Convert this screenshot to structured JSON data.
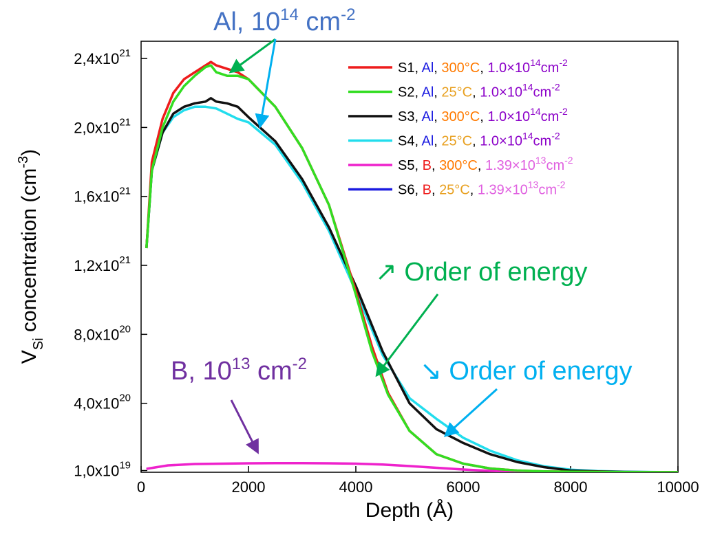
{
  "chart_data": {
    "type": "line",
    "xlabel": "Depth (Å)",
    "ylabel": {
      "main": "V",
      "sub": "Si",
      "rest": " concentration (cm",
      "exp": "-3",
      "end": ")"
    },
    "xlim": [
      0,
      10000
    ],
    "ylim": [
      0,
      2.5e+21
    ],
    "x_ticks": [
      {
        "value": 0,
        "label": "0"
      },
      {
        "value": 2000,
        "label": "2000"
      },
      {
        "value": 4000,
        "label": "4000"
      },
      {
        "value": 6000,
        "label": "6000"
      },
      {
        "value": 8000,
        "label": "8000"
      },
      {
        "value": 10000,
        "label": "10000"
      }
    ],
    "y_ticks": [
      {
        "value": 1e+19,
        "mant": "1,0x10",
        "exp": "19"
      },
      {
        "value": 4e+20,
        "mant": "4,0x10",
        "exp": "20"
      },
      {
        "value": 8e+20,
        "mant": "8,0x10",
        "exp": "20"
      },
      {
        "value": 1.2e+21,
        "mant": "1,2x10",
        "exp": "21"
      },
      {
        "value": 1.6e+21,
        "mant": "1,6x10",
        "exp": "21"
      },
      {
        "value": 2e+21,
        "mant": "2,0x10",
        "exp": "21"
      },
      {
        "value": 2.4e+21,
        "mant": "2,4x10",
        "exp": "21"
      }
    ],
    "legend_position": "top-right",
    "series": [
      {
        "id": "S1",
        "color": "#ee1c1c",
        "width": 3.5,
        "x": [
          100,
          200,
          400,
          600,
          800,
          1000,
          1200,
          1300,
          1400,
          1600,
          1800,
          2000,
          2500,
          3000,
          3500,
          4000,
          4300,
          4600,
          5000,
          5500,
          6000,
          6500,
          7000,
          7500,
          8000,
          9000,
          10000
        ],
        "y": [
          1.3e+21,
          1.8e+21,
          2.05e+21,
          2.2e+21,
          2.28e+21,
          2.32e+21,
          2.36e+21,
          2.38e+21,
          2.36e+21,
          2.34e+21,
          2.32e+21,
          2.28e+21,
          2.12e+21,
          1.88e+21,
          1.55e+21,
          1.05e+21,
          7.3e+20,
          4.6e+20,
          2.4e+20,
          1.05e+20,
          5e+19,
          2.2e+19,
          1e+19,
          5e+18,
          3e+18,
          1e+18,
          0
        ]
      },
      {
        "id": "S2",
        "color": "#33dd22",
        "width": 3.5,
        "x": [
          100,
          200,
          400,
          600,
          800,
          1000,
          1200,
          1300,
          1400,
          1600,
          1800,
          2000,
          2500,
          3000,
          3500,
          4000,
          4300,
          4600,
          5000,
          5500,
          6000,
          6500,
          7000,
          7500,
          8000,
          9000,
          10000
        ],
        "y": [
          1.3e+21,
          1.75e+21,
          2e+21,
          2.15e+21,
          2.24e+21,
          2.3e+21,
          2.35e+21,
          2.36e+21,
          2.32e+21,
          2.3e+21,
          2.3e+21,
          2.28e+21,
          2.12e+21,
          1.88e+21,
          1.55e+21,
          1.03e+21,
          7e+20,
          4.5e+20,
          2.4e+20,
          1.05e+20,
          5e+19,
          2.2e+19,
          1e+19,
          5e+18,
          3e+18,
          1e+18,
          0
        ]
      },
      {
        "id": "S3",
        "color": "#111111",
        "width": 3.5,
        "x": [
          100,
          200,
          400,
          600,
          800,
          1000,
          1200,
          1300,
          1400,
          1600,
          1800,
          2000,
          2500,
          3000,
          3500,
          4000,
          4500,
          5000,
          5500,
          6000,
          6500,
          7000,
          7500,
          8000,
          8500,
          9000,
          10000
        ],
        "y": [
          1.3e+21,
          1.75e+21,
          1.97e+21,
          2.08e+21,
          2.12e+21,
          2.14e+21,
          2.15e+21,
          2.17e+21,
          2.15e+21,
          2.14e+21,
          2.12e+21,
          2.06e+21,
          1.92e+21,
          1.7e+21,
          1.42e+21,
          1.08e+21,
          7e+20,
          4e+20,
          2.5e+20,
          1.7e+20,
          1.05e+20,
          6e+19,
          3e+19,
          1e+19,
          5e+18,
          2e+18,
          0
        ]
      },
      {
        "id": "S4",
        "color": "#22dded",
        "width": 3.5,
        "x": [
          100,
          200,
          400,
          600,
          800,
          1000,
          1200,
          1400,
          1600,
          1800,
          2000,
          2500,
          3000,
          3500,
          4000,
          4500,
          5000,
          5500,
          6000,
          6500,
          7000,
          7500,
          8000,
          8500,
          9000,
          10000
        ],
        "y": [
          1.3e+21,
          1.75e+21,
          1.97e+21,
          2.06e+21,
          2.1e+21,
          2.12e+21,
          2.12e+21,
          2.11e+21,
          2.08e+21,
          2.05e+21,
          2.03e+21,
          1.9e+21,
          1.68e+21,
          1.4e+21,
          1.05e+21,
          6.8e+20,
          4.3e+20,
          3.1e+20,
          2e+20,
          1.25e+20,
          7e+19,
          3.5e+19,
          1.5e+19,
          7e+18,
          3e+18,
          0
        ]
      },
      {
        "id": "S5",
        "color": "#ee22cc",
        "width": 3.5,
        "x": [
          100,
          300,
          500,
          1000,
          1500,
          2000,
          2500,
          3000,
          3500,
          4000,
          4500,
          5000,
          5500,
          6000,
          6500,
          7000,
          8000,
          9000,
          10000
        ],
        "y": [
          2e+19,
          3e+19,
          4e+19,
          4.8e+19,
          5e+19,
          5.2e+19,
          5.3e+19,
          5.3e+19,
          5.2e+19,
          5e+19,
          4.5e+19,
          3.6e+19,
          2.6e+19,
          1.6e+19,
          8e+18,
          4e+18,
          1e+18,
          0,
          0
        ]
      },
      {
        "id": "S6",
        "color": "#1a1ae0",
        "width": 2.5,
        "x": [
          100,
          300,
          500,
          1000,
          1500,
          2000,
          2500,
          3000,
          3500,
          4000,
          4500,
          5000,
          5500,
          6000,
          6500,
          7000,
          8000,
          9000,
          10000
        ],
        "y": [
          2e+19,
          3e+19,
          4e+19,
          4.8e+19,
          5e+19,
          5.2e+19,
          5.3e+19,
          5.3e+19,
          5.2e+19,
          5e+19,
          4.5e+19,
          3.6e+19,
          2.6e+19,
          1.6e+19,
          8e+18,
          4e+18,
          1e+18,
          0,
          0
        ]
      }
    ],
    "legend": [
      {
        "line_color": "#ee1c1c",
        "sample": "S1",
        "element": "Al",
        "element_color": "#1a1ae0",
        "temp": "300°C",
        "temp_color": "#ff7a00",
        "dose_mant": "1.0×10",
        "dose_exp": "14",
        "dose_unit": "cm",
        "unit_exp": "-2",
        "dose_color": "#8b00c8"
      },
      {
        "line_color": "#33dd22",
        "sample": "S2",
        "element": "Al",
        "element_color": "#1a1ae0",
        "temp": "25°C",
        "temp_color": "#e8a020",
        "dose_mant": "1.0×10",
        "dose_exp": "14",
        "dose_unit": "cm",
        "unit_exp": "-2",
        "dose_color": "#8b00c8"
      },
      {
        "line_color": "#111111",
        "sample": "S3",
        "element": "Al",
        "element_color": "#1a1ae0",
        "temp": "300°C",
        "temp_color": "#ff7a00",
        "dose_mant": "1.0×10",
        "dose_exp": "14",
        "dose_unit": "cm",
        "unit_exp": "-2",
        "dose_color": "#8b00c8"
      },
      {
        "line_color": "#22dded",
        "sample": "S4",
        "element": "Al",
        "element_color": "#1a1ae0",
        "temp": "25°C",
        "temp_color": "#e8a020",
        "dose_mant": "1.0×10",
        "dose_exp": "14",
        "dose_unit": "cm",
        "unit_exp": "-2",
        "dose_color": "#8b00c8"
      },
      {
        "line_color": "#ee22cc",
        "sample": "S5",
        "element": "B",
        "element_color": "#ee1c1c",
        "temp": "300°C",
        "temp_color": "#ff7a00",
        "dose_mant": "1.39×10",
        "dose_exp": "13",
        "dose_unit": "cm",
        "unit_exp": "-2",
        "dose_color": "#e060e0"
      },
      {
        "line_color": "#1a1ae0",
        "sample": "S6",
        "element": "B",
        "element_color": "#ee1c1c",
        "temp": "25°C",
        "temp_color": "#e8a020",
        "dose_mant": "1.39×10",
        "dose_exp": "13",
        "dose_unit": "cm",
        "unit_exp": "-2",
        "dose_color": "#e060e0"
      }
    ],
    "annotations": {
      "al": {
        "text": "Al, 10",
        "exp": "14",
        "unit": " cm",
        "unit_exp": "-2",
        "color": "#4472c4"
      },
      "b": {
        "text": "B, 10",
        "exp": "13",
        "unit": " cm",
        "unit_exp": "-2",
        "color": "#7030a0"
      },
      "order_up": {
        "arrow": "↗",
        "text": " Order of energy",
        "color": "#00b050"
      },
      "order_down": {
        "arrow": "↘",
        "text": " Order of energy",
        "color": "#00b0f0"
      }
    }
  }
}
